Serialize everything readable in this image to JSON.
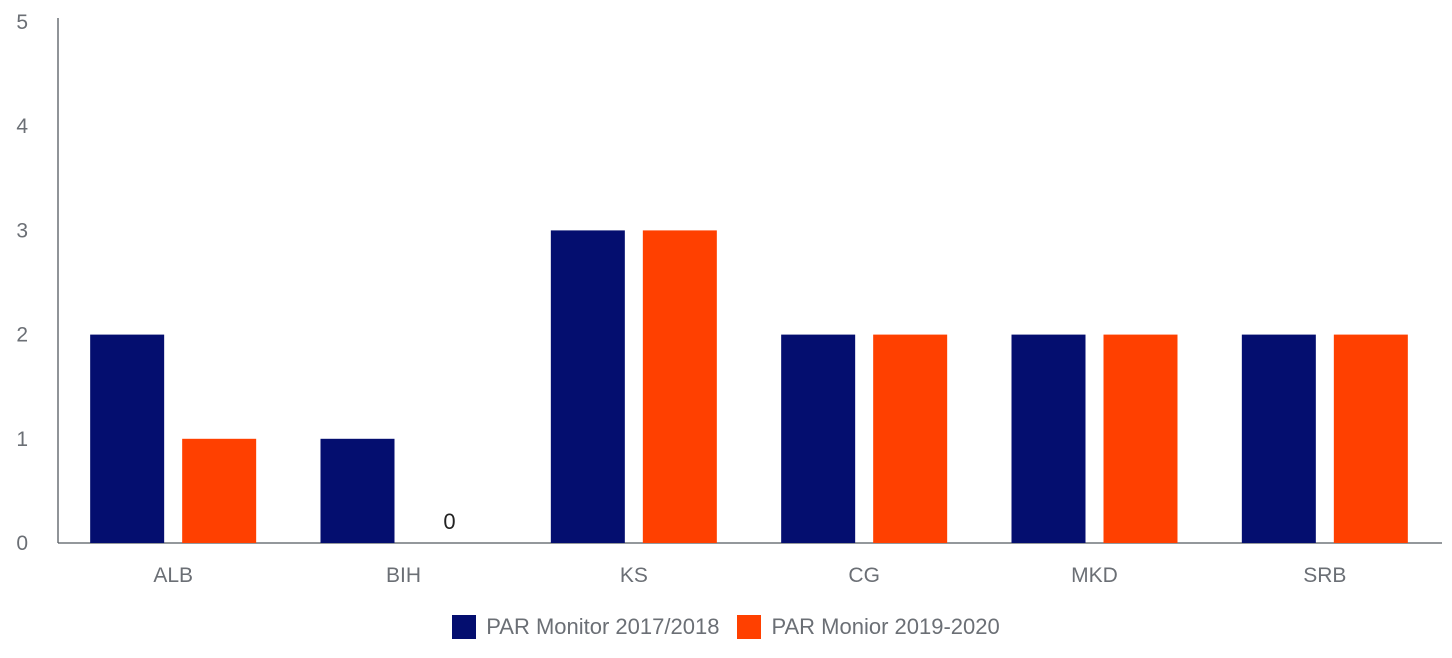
{
  "chart_data": {
    "type": "bar",
    "categories": [
      "ALB",
      "BIH",
      "KS",
      "CG",
      "MKD",
      "SRB"
    ],
    "series": [
      {
        "name": "PAR Monitor 2017/2018",
        "values": [
          2,
          1,
          3,
          2,
          2,
          2
        ],
        "color": "#040e6f"
      },
      {
        "name": "PAR Monior 2019-2020",
        "values": [
          1,
          0,
          3,
          2,
          2,
          2
        ],
        "color": "#ff4000"
      }
    ],
    "ylim": [
      0,
      5
    ],
    "yticks": [
      "0",
      "1",
      "2",
      "3",
      "4",
      "5"
    ],
    "data_labels": [
      {
        "category": "BIH",
        "series": 1,
        "text": "0"
      }
    ],
    "grid": false,
    "legend_position": "bottom-center",
    "title": "",
    "xlabel": "",
    "ylabel": ""
  }
}
